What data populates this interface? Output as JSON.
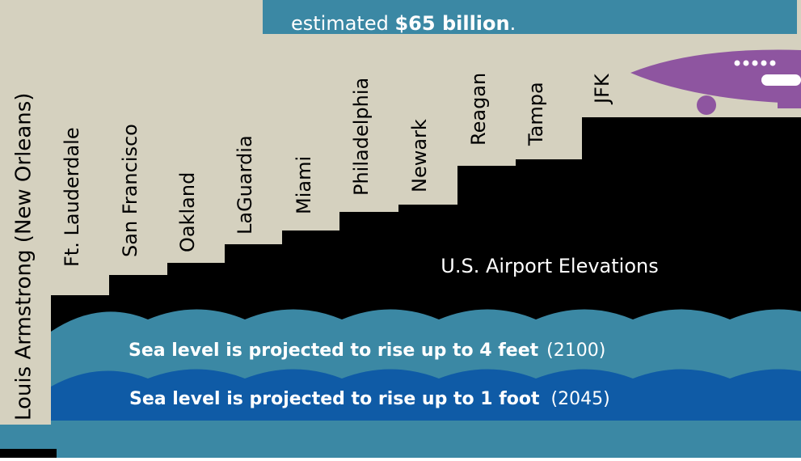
{
  "banner": {
    "text": "estimated ",
    "emphasis": "$65 billion",
    "end": "."
  },
  "airports": [
    "Louis Armstrong (New Orleans)",
    "Ft. Lauderdale",
    "San Francisco",
    "Oakland",
    "LaGuardia",
    "Miami",
    "Philadelphia",
    "Newark",
    "Reagan",
    "Tampa",
    "JFK"
  ],
  "title": "U.S. Airport Elevations",
  "sea_levels": [
    {
      "text": "Sea level is projected to rise up to 4 feet",
      "year": "(2100)"
    },
    {
      "text": "Sea level is projected to rise up to 1 foot",
      "year": "(2045)"
    }
  ]
}
